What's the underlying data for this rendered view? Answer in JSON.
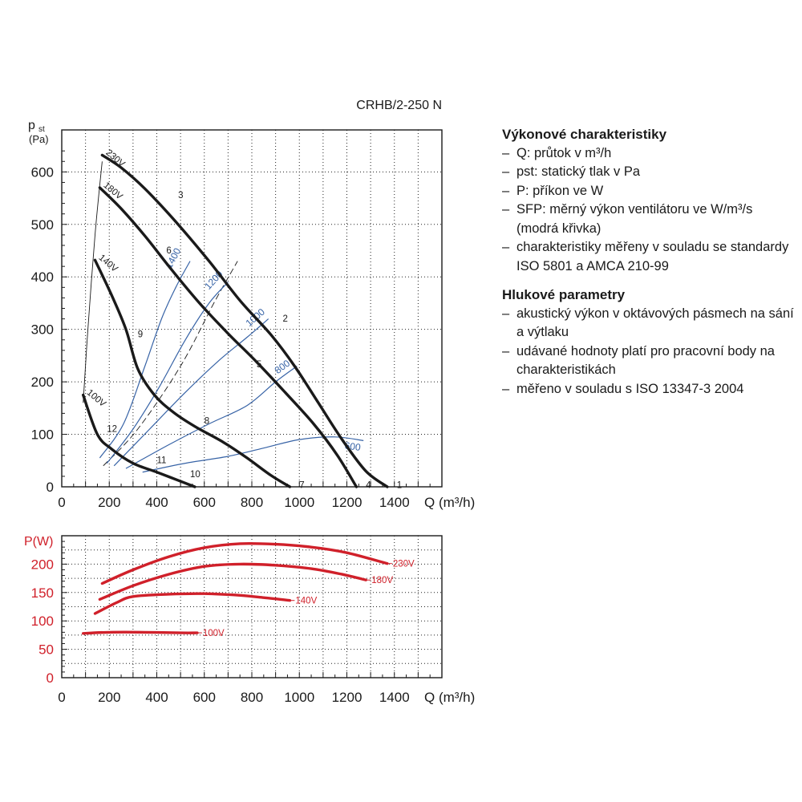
{
  "chart_data": [
    {
      "type": "line",
      "title": "CRHB/2-250 N",
      "ylabel_main": "p",
      "ylabel_sub": "st",
      "ylabel_unit": "(Pa)",
      "xlabel": "Q (m³/h)",
      "xlim": [
        0,
        1600
      ],
      "ylim": [
        0,
        680
      ],
      "xticks": [
        "0",
        "200",
        "400",
        "600",
        "800",
        "1000",
        "1200",
        "1400"
      ],
      "yticks": [
        "0",
        "100",
        "200",
        "300",
        "400",
        "500",
        "600"
      ],
      "grid": true,
      "series": [
        {
          "name": "230V",
          "color": "#1a1a1a",
          "width": 3.4,
          "points": [
            [
              170,
              632
            ],
            [
              250,
              608
            ],
            [
              350,
              568
            ],
            [
              480,
              505
            ],
            [
              620,
              430
            ],
            [
              750,
              355
            ],
            [
              880,
              290
            ],
            [
              980,
              230
            ],
            [
              1080,
              160
            ],
            [
              1180,
              90
            ],
            [
              1280,
              30
            ],
            [
              1370,
              0
            ]
          ]
        },
        {
          "name": "180V",
          "color": "#1a1a1a",
          "width": 3.4,
          "points": [
            [
              160,
              570
            ],
            [
              250,
              530
            ],
            [
              350,
              478
            ],
            [
              460,
              415
            ],
            [
              580,
              350
            ],
            [
              700,
              292
            ],
            [
              820,
              238
            ],
            [
              940,
              180
            ],
            [
              1060,
              120
            ],
            [
              1160,
              60
            ],
            [
              1240,
              0
            ]
          ]
        },
        {
          "name": "140V",
          "color": "#1a1a1a",
          "width": 3.4,
          "points": [
            [
              140,
              432
            ],
            [
              210,
              365
            ],
            [
              270,
              300
            ],
            [
              320,
              225
            ],
            [
              390,
              175
            ],
            [
              470,
              142
            ],
            [
              560,
              115
            ],
            [
              680,
              85
            ],
            [
              780,
              55
            ],
            [
              880,
              22
            ],
            [
              960,
              0
            ]
          ]
        },
        {
          "name": "100V",
          "color": "#1a1a1a",
          "width": 3.4,
          "points": [
            [
              90,
              175
            ],
            [
              150,
              100
            ],
            [
              210,
              72
            ],
            [
              300,
              45
            ],
            [
              400,
              28
            ],
            [
              480,
              14
            ],
            [
              560,
              0
            ]
          ]
        }
      ],
      "sfp_curves": [
        {
          "label": "1400",
          "points": [
            [
              160,
              55
            ],
            [
              260,
              120
            ],
            [
              350,
              230
            ],
            [
              420,
              320
            ],
            [
              480,
              380
            ],
            [
              540,
              430
            ]
          ]
        },
        {
          "label": "1200",
          "points": [
            [
              190,
              45
            ],
            [
              300,
              110
            ],
            [
              410,
              190
            ],
            [
              520,
              280
            ],
            [
              620,
              350
            ],
            [
              700,
              390
            ]
          ]
        },
        {
          "label": "1000",
          "points": [
            [
              220,
              40
            ],
            [
              370,
              110
            ],
            [
              520,
              180
            ],
            [
              660,
              240
            ],
            [
              780,
              285
            ],
            [
              870,
              320
            ]
          ]
        },
        {
          "label": "800",
          "points": [
            [
              270,
              35
            ],
            [
              450,
              80
            ],
            [
              620,
              120
            ],
            [
              780,
              155
            ],
            [
              900,
              200
            ],
            [
              990,
              230
            ]
          ]
        },
        {
          "label": "600",
          "points": [
            [
              340,
              28
            ],
            [
              520,
              45
            ],
            [
              700,
              58
            ],
            [
              860,
              75
            ],
            [
              1000,
              90
            ],
            [
              1150,
              95
            ],
            [
              1270,
              88
            ]
          ]
        }
      ],
      "sfp_color": "#3763a6",
      "system_curves": [
        {
          "points": [
            [
              90,
              160
            ],
            [
              110,
              300
            ],
            [
              140,
              480
            ],
            [
              170,
              620
            ]
          ]
        },
        {
          "points": [
            [
              175,
              40
            ],
            [
              320,
              110
            ],
            [
              500,
              230
            ],
            [
              640,
              350
            ],
            [
              740,
              430
            ]
          ]
        }
      ],
      "curve_labels": [
        "1",
        "2",
        "3",
        "4",
        "5",
        "6",
        "7",
        "8",
        "9",
        "10",
        "11",
        "12"
      ]
    },
    {
      "type": "line",
      "ylabel": "P(W)",
      "xlabel": "Q (m³/h)",
      "xlim": [
        0,
        1600
      ],
      "ylim": [
        0,
        250
      ],
      "xticks": [
        "0",
        "200",
        "400",
        "600",
        "800",
        "1000",
        "1200",
        "1400"
      ],
      "yticks": [
        "0",
        "50",
        "100",
        "150",
        "200"
      ],
      "grid": true,
      "series": [
        {
          "name": "230V",
          "color": "#d0202a",
          "width": 3.4,
          "points": [
            [
              170,
              166
            ],
            [
              300,
              190
            ],
            [
              450,
              213
            ],
            [
              600,
              229
            ],
            [
              750,
              236
            ],
            [
              900,
              235
            ],
            [
              1050,
              230
            ],
            [
              1200,
              220
            ],
            [
              1370,
              201
            ]
          ]
        },
        {
          "name": "180V",
          "color": "#d0202a",
          "width": 3.4,
          "points": [
            [
              160,
              138
            ],
            [
              300,
              162
            ],
            [
              450,
              182
            ],
            [
              600,
              196
            ],
            [
              750,
              200
            ],
            [
              900,
              198
            ],
            [
              1050,
              192
            ],
            [
              1180,
              182
            ],
            [
              1280,
              172
            ]
          ]
        },
        {
          "name": "140V",
          "color": "#d0202a",
          "width": 3.4,
          "points": [
            [
              140,
              113
            ],
            [
              230,
              132
            ],
            [
              300,
              143
            ],
            [
              450,
              147
            ],
            [
              600,
              148
            ],
            [
              750,
              145
            ],
            [
              850,
              141
            ],
            [
              960,
              136
            ]
          ]
        },
        {
          "name": "100V",
          "color": "#d0202a",
          "width": 3.4,
          "points": [
            [
              90,
              78
            ],
            [
              200,
              80
            ],
            [
              350,
              80
            ],
            [
              500,
              79
            ],
            [
              570,
              79
            ]
          ]
        }
      ]
    }
  ],
  "notes": {
    "performance_title": "Výkonové charakteristiky",
    "performance_items": [
      "Q: průtok v m³/h",
      "pst: statický tlak v Pa",
      "P: příkon ve W",
      "SFP: měrný výkon ventilátoru ve W/m³/s (modrá křivka)",
      "charakteristiky měřeny v souladu se standardy ISO 5801 a AMCA 210-99"
    ],
    "noise_title": "Hlukové parametry",
    "noise_items": [
      "akustický výkon v oktávových pásmech na sání a výtlaku",
      "udávané hodnoty platí pro pracovní body na charakteristikách",
      "měřeno v souladu s ISO 13347-3 2004"
    ]
  }
}
